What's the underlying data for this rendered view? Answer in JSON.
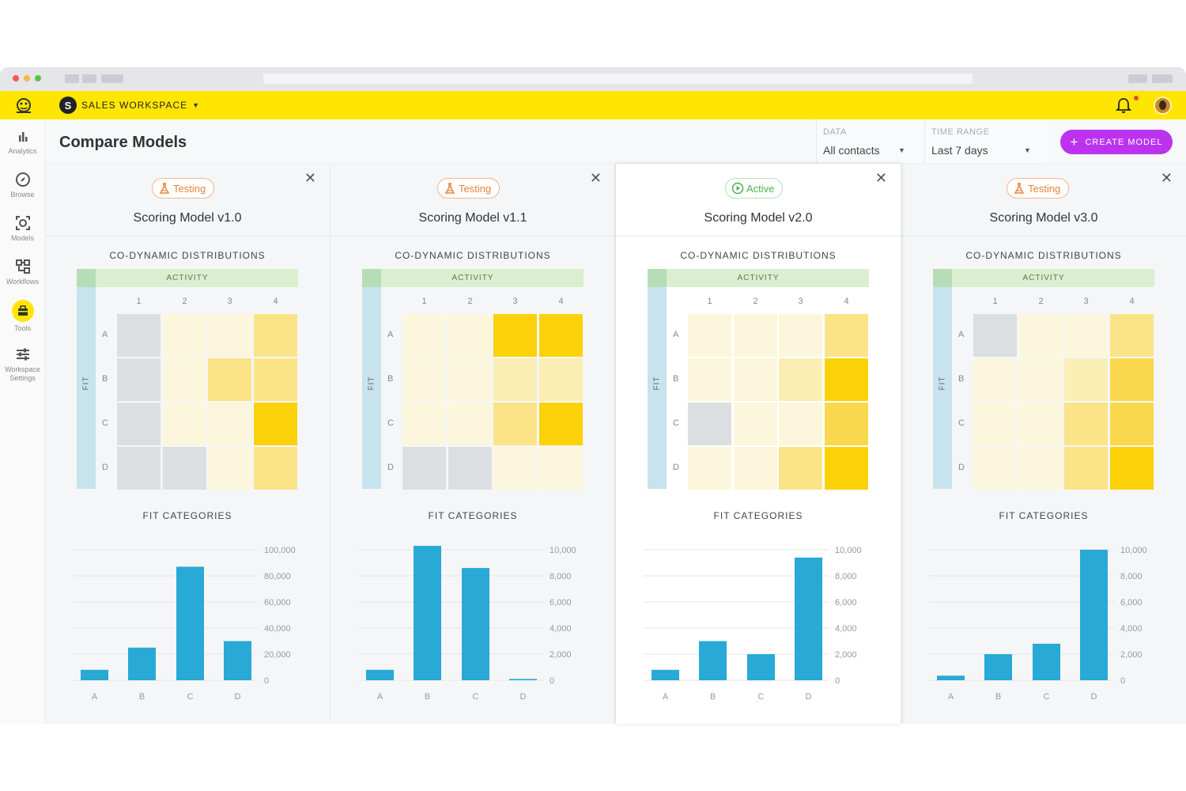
{
  "app": {
    "workspace_name": "SALES WORKSPACE",
    "workspace_initial": "S",
    "brand_color": "#ffe600",
    "accent_color": "#bb33ee"
  },
  "sidebar": {
    "items": [
      {
        "label": "Analytics",
        "icon": "bar-chart-icon"
      },
      {
        "label": "Browse",
        "icon": "compass-icon"
      },
      {
        "label": "Models",
        "icon": "models-icon"
      },
      {
        "label": "Workflows",
        "icon": "workflows-icon"
      },
      {
        "label": "Tools",
        "icon": "toolbox-icon",
        "active": true
      },
      {
        "label": "Workspace Settings",
        "icon": "sliders-icon"
      }
    ]
  },
  "header": {
    "title": "Compare Models",
    "data_filter": {
      "label": "DATA",
      "value": "All contacts"
    },
    "range_filter": {
      "label": "TIME RANGE",
      "value": "Last 7 days"
    },
    "create_button": "CREATE MODEL"
  },
  "section_titles": {
    "heatmap": "CO-DYNAMIC DISTRIBUTIONS",
    "heatmap_x": "ACTIVITY",
    "heatmap_y": "FIT",
    "bars": "FIT CATEGORIES"
  },
  "heatmap_columns": [
    "1",
    "2",
    "3",
    "4"
  ],
  "heatmap_rows": [
    "A",
    "B",
    "C",
    "D"
  ],
  "models": [
    {
      "status": "Testing",
      "name": "Scoring Model v1.0"
    },
    {
      "status": "Testing",
      "name": "Scoring Model v1.1"
    },
    {
      "status": "Active",
      "name": "Scoring Model v2.0"
    },
    {
      "status": "Testing",
      "name": "Scoring Model v3.0"
    }
  ],
  "chart_data": [
    {
      "type": "heatmap",
      "title": "CO-DYNAMIC DISTRIBUTIONS",
      "xlabel": "ACTIVITY",
      "ylabel": "FIT",
      "x": [
        "1",
        "2",
        "3",
        "4"
      ],
      "y": [
        "A",
        "B",
        "C",
        "D"
      ],
      "intensity": [
        [
          -1,
          0,
          0,
          2
        ],
        [
          -1,
          0,
          2,
          2
        ],
        [
          -1,
          0,
          0,
          4
        ],
        [
          -1,
          -1,
          0,
          2
        ]
      ]
    },
    {
      "type": "bar",
      "title": "FIT CATEGORIES",
      "categories": [
        "A",
        "B",
        "C",
        "D"
      ],
      "values": [
        8000,
        25000,
        87000,
        30000
      ],
      "yticks": [
        "0",
        "20,000",
        "40,000",
        "60,000",
        "80,000",
        "100,000"
      ],
      "ylim": [
        0,
        100000
      ]
    },
    {
      "type": "heatmap",
      "title": "CO-DYNAMIC DISTRIBUTIONS",
      "xlabel": "ACTIVITY",
      "ylabel": "FIT",
      "x": [
        "1",
        "2",
        "3",
        "4"
      ],
      "y": [
        "A",
        "B",
        "C",
        "D"
      ],
      "intensity": [
        [
          0,
          0,
          4,
          4
        ],
        [
          0,
          0,
          1,
          1
        ],
        [
          0,
          0,
          2,
          4
        ],
        [
          -1,
          -1,
          0,
          0
        ]
      ]
    },
    {
      "type": "bar",
      "title": "FIT CATEGORIES",
      "categories": [
        "A",
        "B",
        "C",
        "D"
      ],
      "values": [
        800,
        10300,
        8600,
        100
      ],
      "yticks": [
        "0",
        "2,000",
        "4,000",
        "6,000",
        "8,000",
        "10,000"
      ],
      "ylim": [
        0,
        10000
      ]
    },
    {
      "type": "heatmap",
      "title": "CO-DYNAMIC DISTRIBUTIONS",
      "xlabel": "ACTIVITY",
      "ylabel": "FIT",
      "x": [
        "1",
        "2",
        "3",
        "4"
      ],
      "y": [
        "A",
        "B",
        "C",
        "D"
      ],
      "intensity": [
        [
          0,
          0,
          0,
          2
        ],
        [
          0,
          0,
          1,
          4
        ],
        [
          -1,
          0,
          0,
          3
        ],
        [
          0,
          0,
          2,
          4
        ]
      ]
    },
    {
      "type": "bar",
      "title": "FIT CATEGORIES",
      "categories": [
        "A",
        "B",
        "C",
        "D"
      ],
      "values": [
        800,
        3000,
        2000,
        9400
      ],
      "yticks": [
        "0",
        "2,000",
        "4,000",
        "6,000",
        "8,000",
        "10,000"
      ],
      "ylim": [
        0,
        10000
      ]
    },
    {
      "type": "heatmap",
      "title": "CO-DYNAMIC DISTRIBUTIONS",
      "xlabel": "ACTIVITY",
      "ylabel": "FIT",
      "x": [
        "1",
        "2",
        "3",
        "4"
      ],
      "y": [
        "A",
        "B",
        "C",
        "D"
      ],
      "intensity": [
        [
          -1,
          0,
          0,
          2
        ],
        [
          0,
          0,
          1,
          3
        ],
        [
          0,
          0,
          2,
          3
        ],
        [
          0,
          0,
          2,
          4
        ]
      ]
    },
    {
      "type": "bar",
      "title": "FIT CATEGORIES",
      "categories": [
        "A",
        "B",
        "C",
        "D"
      ],
      "values": [
        350,
        2000,
        2800,
        10000
      ],
      "yticks": [
        "0",
        "2,000",
        "4,000",
        "6,000",
        "8,000",
        "10,000"
      ],
      "ylim": [
        0,
        10000
      ]
    }
  ],
  "colors": {
    "bar": "#29a9d6",
    "heat_gray": "#dcdfe2",
    "heat_levels": [
      "#fcf6dc",
      "#fbeeb5",
      "#fbe488",
      "#fad84d",
      "#fbd20a"
    ],
    "testing_badge": "#e8833a",
    "active_badge": "#4caf50"
  }
}
